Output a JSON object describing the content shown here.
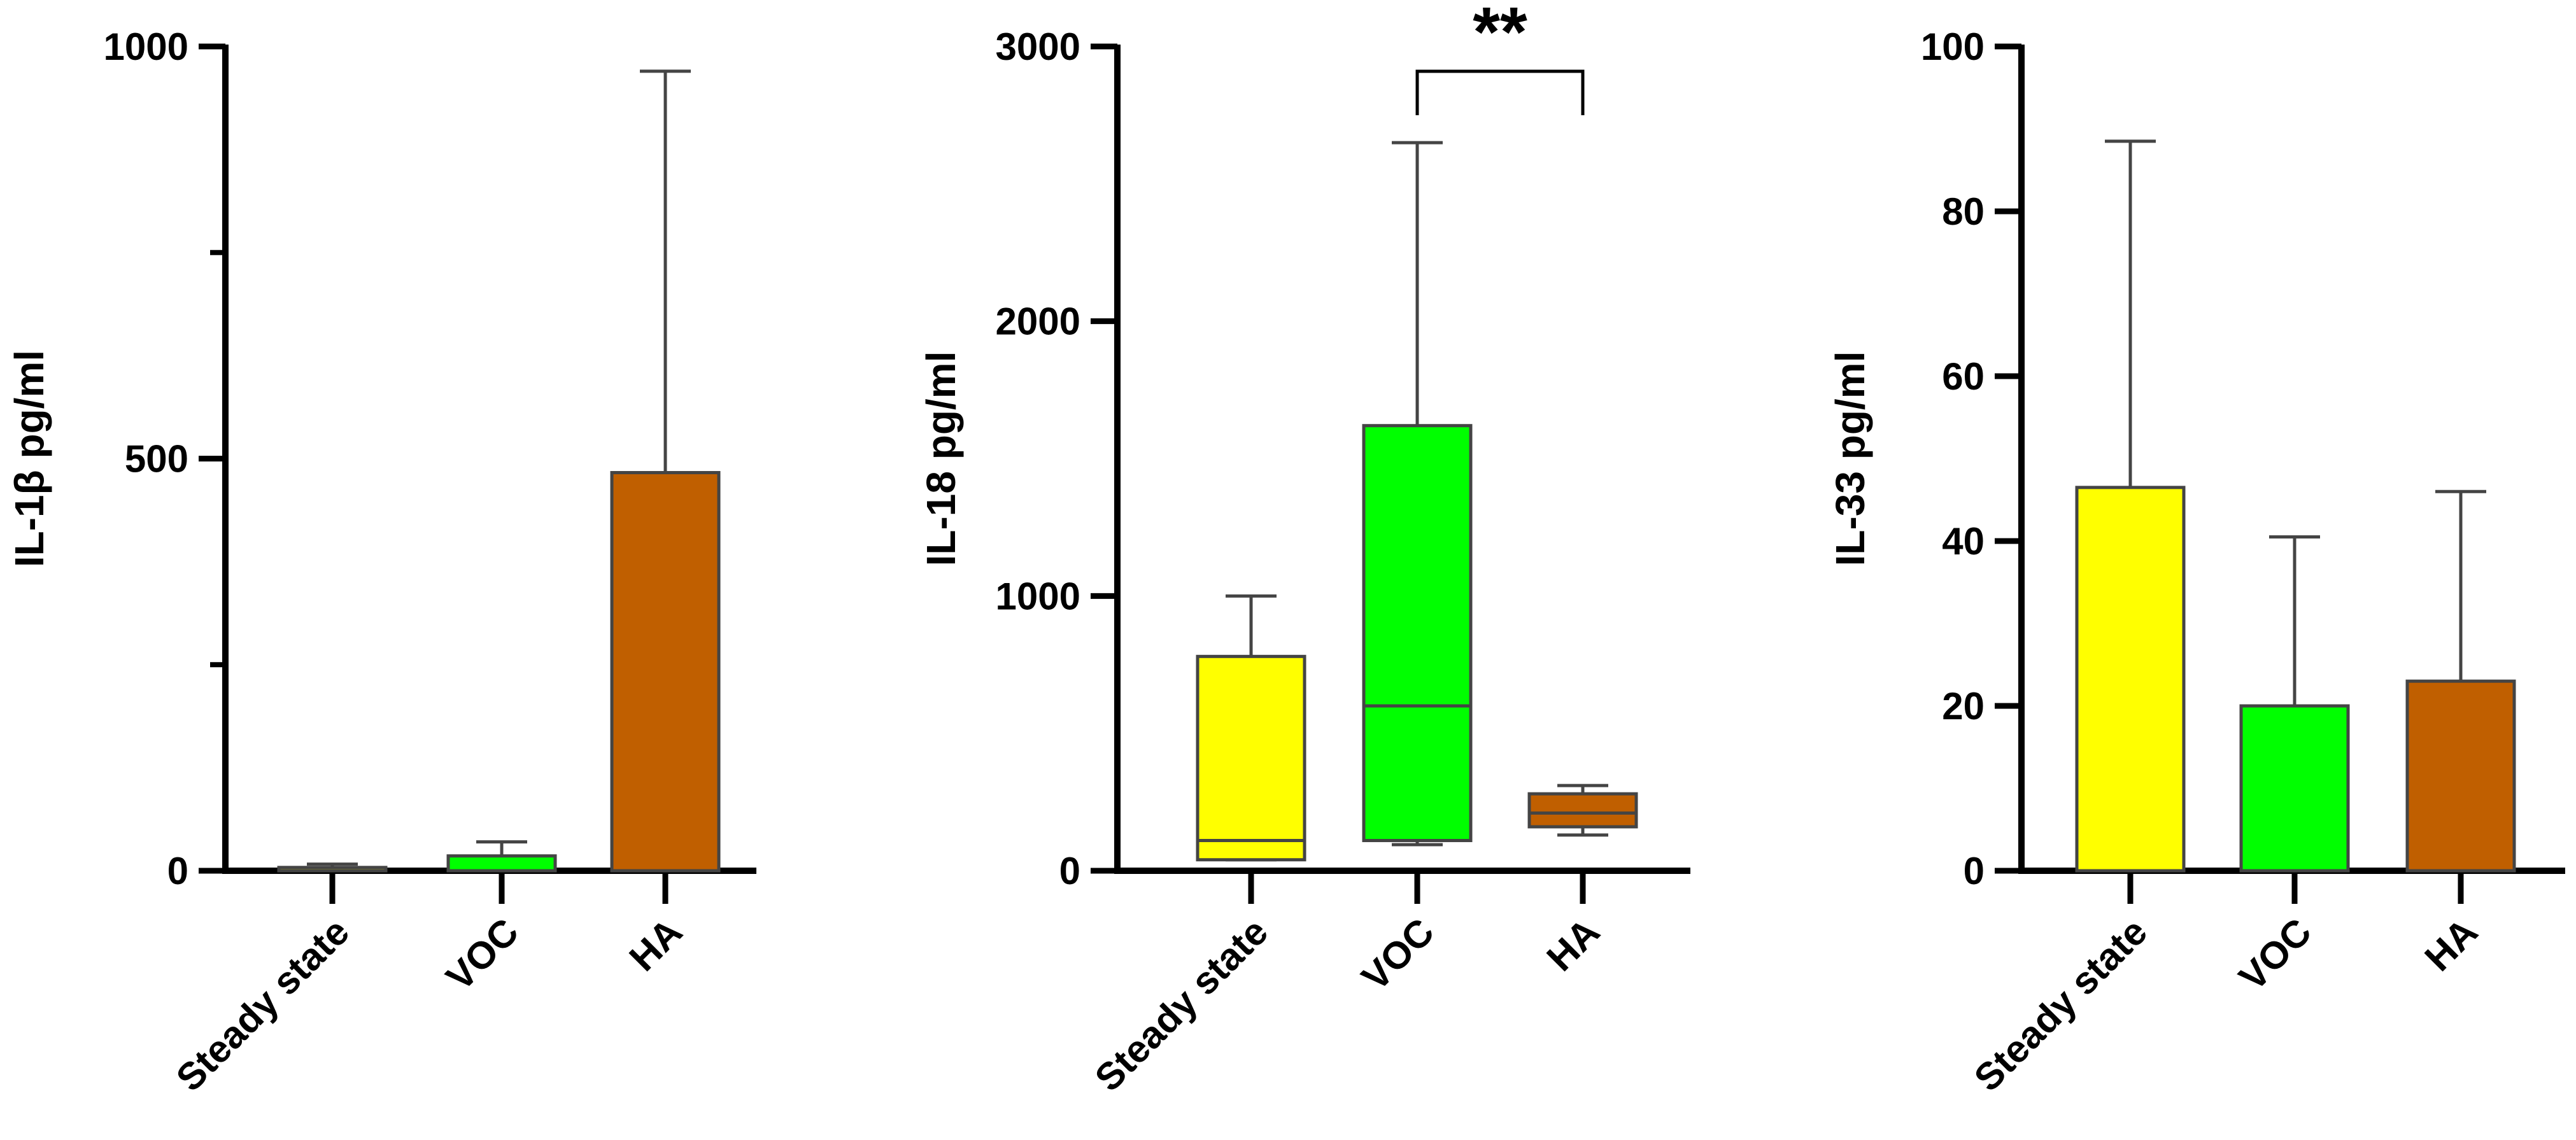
{
  "chart_data": [
    {
      "type": "bar",
      "ylabel": "IL-1β pg/ml",
      "categories": [
        "Steady state",
        "VOC",
        "HA"
      ],
      "ylim": [
        0,
        1000
      ],
      "yticks": [
        0,
        500,
        1000
      ],
      "yticks_minor": [
        250,
        750
      ],
      "series": [
        {
          "values": [
            4,
            18,
            483
          ],
          "error_upper": [
            8,
            35,
            970
          ]
        }
      ],
      "colors": [
        "#FFFF00",
        "#00FF00",
        "#C05F00"
      ]
    },
    {
      "type": "box",
      "ylabel": "IL-18 pg/ml",
      "categories": [
        "Steady state",
        "VOC",
        "HA"
      ],
      "ylim": [
        0,
        3000
      ],
      "yticks": [
        0,
        1000,
        2000,
        3000
      ],
      "boxes": [
        {
          "min": 40,
          "q1": 40,
          "median": 110,
          "q3": 780,
          "max": 1000
        },
        {
          "min": 95,
          "q1": 110,
          "median": 600,
          "q3": 1620,
          "max": 2650
        },
        {
          "min": 130,
          "q1": 160,
          "median": 210,
          "q3": 280,
          "max": 310
        }
      ],
      "colors": [
        "#FFFF00",
        "#00FF00",
        "#C05F00"
      ],
      "annotations": [
        {
          "text": "**",
          "from": "VOC",
          "to": "HA"
        }
      ]
    },
    {
      "type": "bar",
      "ylabel": "IL-33 pg/ml",
      "categories": [
        "Steady state",
        "VOC",
        "HA"
      ],
      "ylim": [
        0,
        100
      ],
      "yticks": [
        0,
        20,
        40,
        60,
        80,
        100
      ],
      "series": [
        {
          "values": [
            46.5,
            20,
            23
          ],
          "error_upper": [
            88.5,
            40.5,
            46
          ]
        }
      ],
      "colors": [
        "#FFFF00",
        "#00FF00",
        "#C05F00"
      ]
    }
  ]
}
